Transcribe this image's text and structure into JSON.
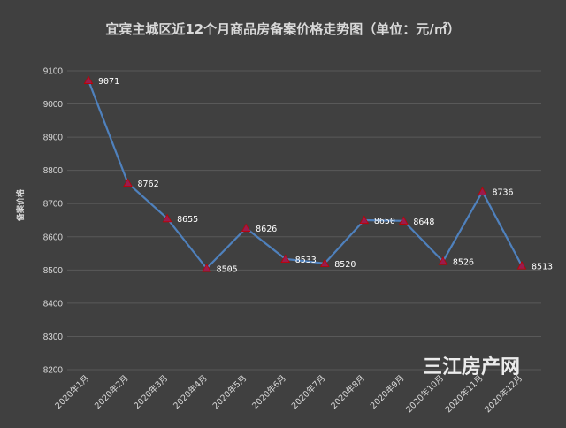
{
  "chart_data": {
    "type": "line",
    "title": "宜宾主城区近12个月商品房备案价格走势图（单位：元/㎡）",
    "ylabel": "备案价格",
    "xlabel": "",
    "categories": [
      "2020年1月",
      "2020年2月",
      "2020年3月",
      "2020年4月",
      "2020年5月",
      "2020年6月",
      "2020年7月",
      "2020年8月",
      "2020年9月",
      "2020年10月",
      "2020年11月",
      "2020年12月"
    ],
    "values": [
      9071,
      8762,
      8655,
      8505,
      8626,
      8533,
      8520,
      8650,
      8648,
      8526,
      8736,
      8513
    ],
    "ylim": [
      8200,
      9100
    ],
    "yticks": [
      8200,
      8300,
      8400,
      8500,
      8600,
      8700,
      8800,
      8900,
      9000,
      9100
    ],
    "grid": true,
    "legend": "none",
    "colors": {
      "background": "#404040",
      "line": "#4f81bd",
      "marker_fill": "#9b1b4d",
      "marker_stroke": "#c00000",
      "grid": "#595959",
      "text": "#d9d9d9"
    }
  },
  "watermark": {
    "text": "三江房产网"
  }
}
